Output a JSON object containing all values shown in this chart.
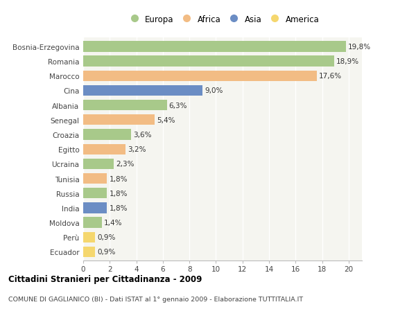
{
  "countries": [
    "Bosnia-Erzegovina",
    "Romania",
    "Marocco",
    "Cina",
    "Albania",
    "Senegal",
    "Croazia",
    "Egitto",
    "Ucraina",
    "Tunisia",
    "Russia",
    "India",
    "Moldova",
    "Perù",
    "Ecuador"
  ],
  "values": [
    19.8,
    18.9,
    17.6,
    9.0,
    6.3,
    5.4,
    3.6,
    3.2,
    2.3,
    1.8,
    1.8,
    1.8,
    1.4,
    0.9,
    0.9
  ],
  "labels": [
    "19,8%",
    "18,9%",
    "17,6%",
    "9,0%",
    "6,3%",
    "5,4%",
    "3,6%",
    "3,2%",
    "2,3%",
    "1,8%",
    "1,8%",
    "1,8%",
    "1,4%",
    "0,9%",
    "0,9%"
  ],
  "continents": [
    "Europa",
    "Europa",
    "Africa",
    "Asia",
    "Europa",
    "Africa",
    "Europa",
    "Africa",
    "Europa",
    "Africa",
    "Europa",
    "Asia",
    "Europa",
    "America",
    "America"
  ],
  "colors": {
    "Europa": "#a8c98a",
    "Africa": "#f2bc84",
    "Asia": "#6b8dc4",
    "America": "#f5d76e"
  },
  "xlim": [
    0,
    21
  ],
  "xticks": [
    0,
    2,
    4,
    6,
    8,
    10,
    12,
    14,
    16,
    18,
    20
  ],
  "title": "Cittadini Stranieri per Cittadinanza - 2009",
  "subtitle": "COMUNE DI GAGLIANICO (BI) - Dati ISTAT al 1° gennaio 2009 - Elaborazione TUTTITALIA.IT",
  "bg_color": "#ffffff",
  "plot_bg_color": "#f5f5f0",
  "grid_color": "#ffffff",
  "bar_height": 0.72,
  "label_fontsize": 7.5,
  "ytick_fontsize": 7.5,
  "xtick_fontsize": 7.5,
  "legend_entries": [
    "Europa",
    "Africa",
    "Asia",
    "America"
  ]
}
